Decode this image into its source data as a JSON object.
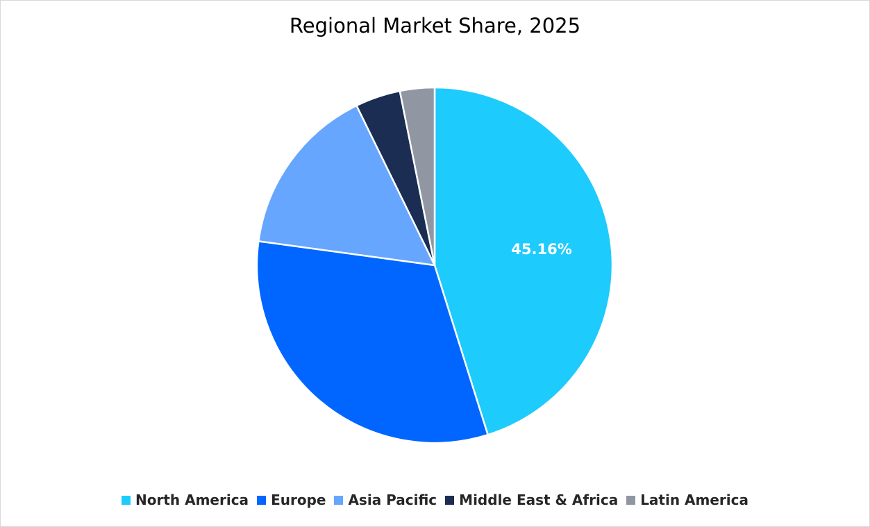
{
  "chart_data": {
    "type": "pie",
    "title": "Regional Market Share, 2025",
    "categories": [
      "North America",
      "Europe",
      "Asia Pacific",
      "Middle East & Africa",
      "Latin America"
    ],
    "values": [
      45.16,
      32.0,
      15.6,
      4.1,
      3.14
    ],
    "colors": [
      "#1ECBFD",
      "#0066FF",
      "#66A6FF",
      "#1B2D52",
      "#9097A3"
    ],
    "data_labels": [
      "45.16%",
      "",
      "",
      "",
      ""
    ],
    "legend_position": "bottom",
    "start_angle_deg": 0,
    "direction": "clockwise"
  },
  "title": "Regional Market Share, 2025",
  "legend": [
    {
      "label": "North America",
      "color": "#1ECBFD"
    },
    {
      "label": "Europe",
      "color": "#0066FF"
    },
    {
      "label": "Asia Pacific",
      "color": "#66A6FF"
    },
    {
      "label": "Middle East & Africa",
      "color": "#1B2D52"
    },
    {
      "label": "Latin America",
      "color": "#9097A3"
    }
  ],
  "labels": {
    "north_america": "45.16%"
  }
}
